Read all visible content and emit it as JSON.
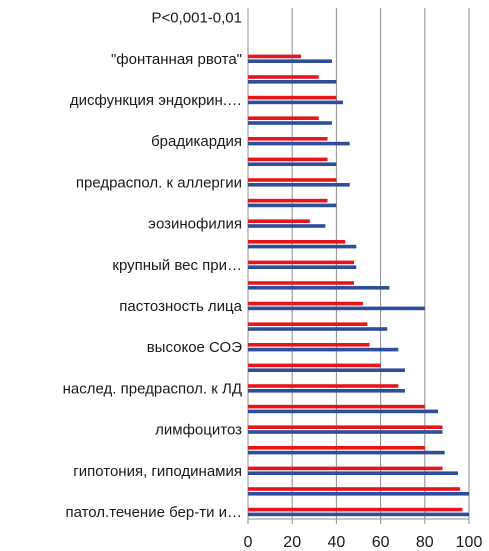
{
  "chart_data": {
    "type": "bar",
    "orientation": "horizontal",
    "title": "",
    "xlabel": "",
    "ylabel": "",
    "xlim": [
      0,
      100
    ],
    "x_ticks": [
      0,
      20,
      40,
      60,
      80,
      100
    ],
    "grid": true,
    "legend": "none",
    "categories": [
      "патол.течение бер-ти и…",
      "",
      "гипотония, гиподинамия",
      "",
      "лимфоцитоз",
      "",
      "наслед. предраспол. к ЛД",
      "",
      "высокое СОЭ",
      "",
      "пастозность лица",
      "",
      "крупный вес при…",
      "",
      "эозинофилия",
      "",
      "предраспол. к аллергии",
      "",
      "брадикардия",
      "",
      "дисфункция эндокрин.…",
      "",
      "\"фонтанная рвота\"",
      "",
      "P<0,001-0,01"
    ],
    "series": [
      {
        "color": "#2e4d9b",
        "values": [
          100,
          100,
          95,
          89,
          88,
          86,
          71,
          71,
          68,
          63,
          80,
          64,
          49,
          49,
          35,
          40,
          46,
          40,
          46,
          38,
          43,
          40,
          38,
          null,
          null
        ]
      },
      {
        "color": "#e8141c",
        "values": [
          97,
          96,
          88,
          80,
          88,
          80,
          68,
          60,
          55,
          54,
          52,
          48,
          48,
          44,
          28,
          36,
          40,
          36,
          36,
          32,
          40,
          32,
          24,
          null,
          null
        ]
      }
    ],
    "colors": {
      "grid": "#8c8c8c",
      "axis": "#8c8c8c",
      "text": "#1a1a1a"
    }
  }
}
